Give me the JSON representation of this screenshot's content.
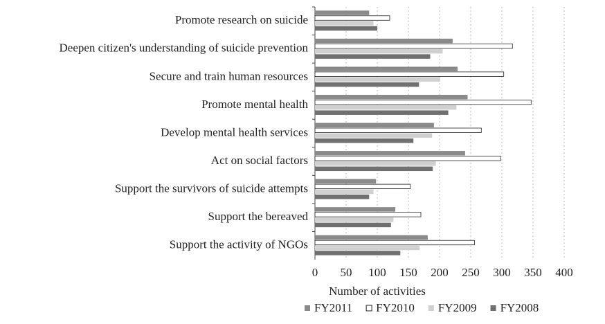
{
  "chart_data": {
    "type": "hbar",
    "xlabel": "Number of activities",
    "categories": [
      "Promote research on suicide",
      "Deepen citizen's understanding of suicide prevention",
      "Secure and train human resources",
      "Promote mental health",
      "Develop mental health services",
      "Act on social factors",
      "Support the survivors of suicide attempts",
      "Support the bereaved",
      "Support the activity of NGOs"
    ],
    "series": [
      {
        "name": "FY2011",
        "color": "#8a8a8a",
        "values": [
          87,
          221,
          229,
          245,
          191,
          241,
          98,
          129,
          181
        ]
      },
      {
        "name": "FY2010",
        "color": "#ffffff",
        "values": [
          120,
          317,
          303,
          347,
          267,
          298,
          153,
          170,
          256
        ]
      },
      {
        "name": "FY2009",
        "color": "#d0d0d0",
        "values": [
          94,
          205,
          201,
          227,
          188,
          194,
          94,
          126,
          168
        ]
      },
      {
        "name": "FY2008",
        "color": "#707070",
        "values": [
          100,
          185,
          167,
          214,
          158,
          189,
          87,
          122,
          137
        ]
      }
    ],
    "xlim": [
      0,
      400
    ],
    "xticks": [
      0,
      50,
      100,
      150,
      200,
      250,
      300,
      350,
      400
    ],
    "grid": true
  }
}
